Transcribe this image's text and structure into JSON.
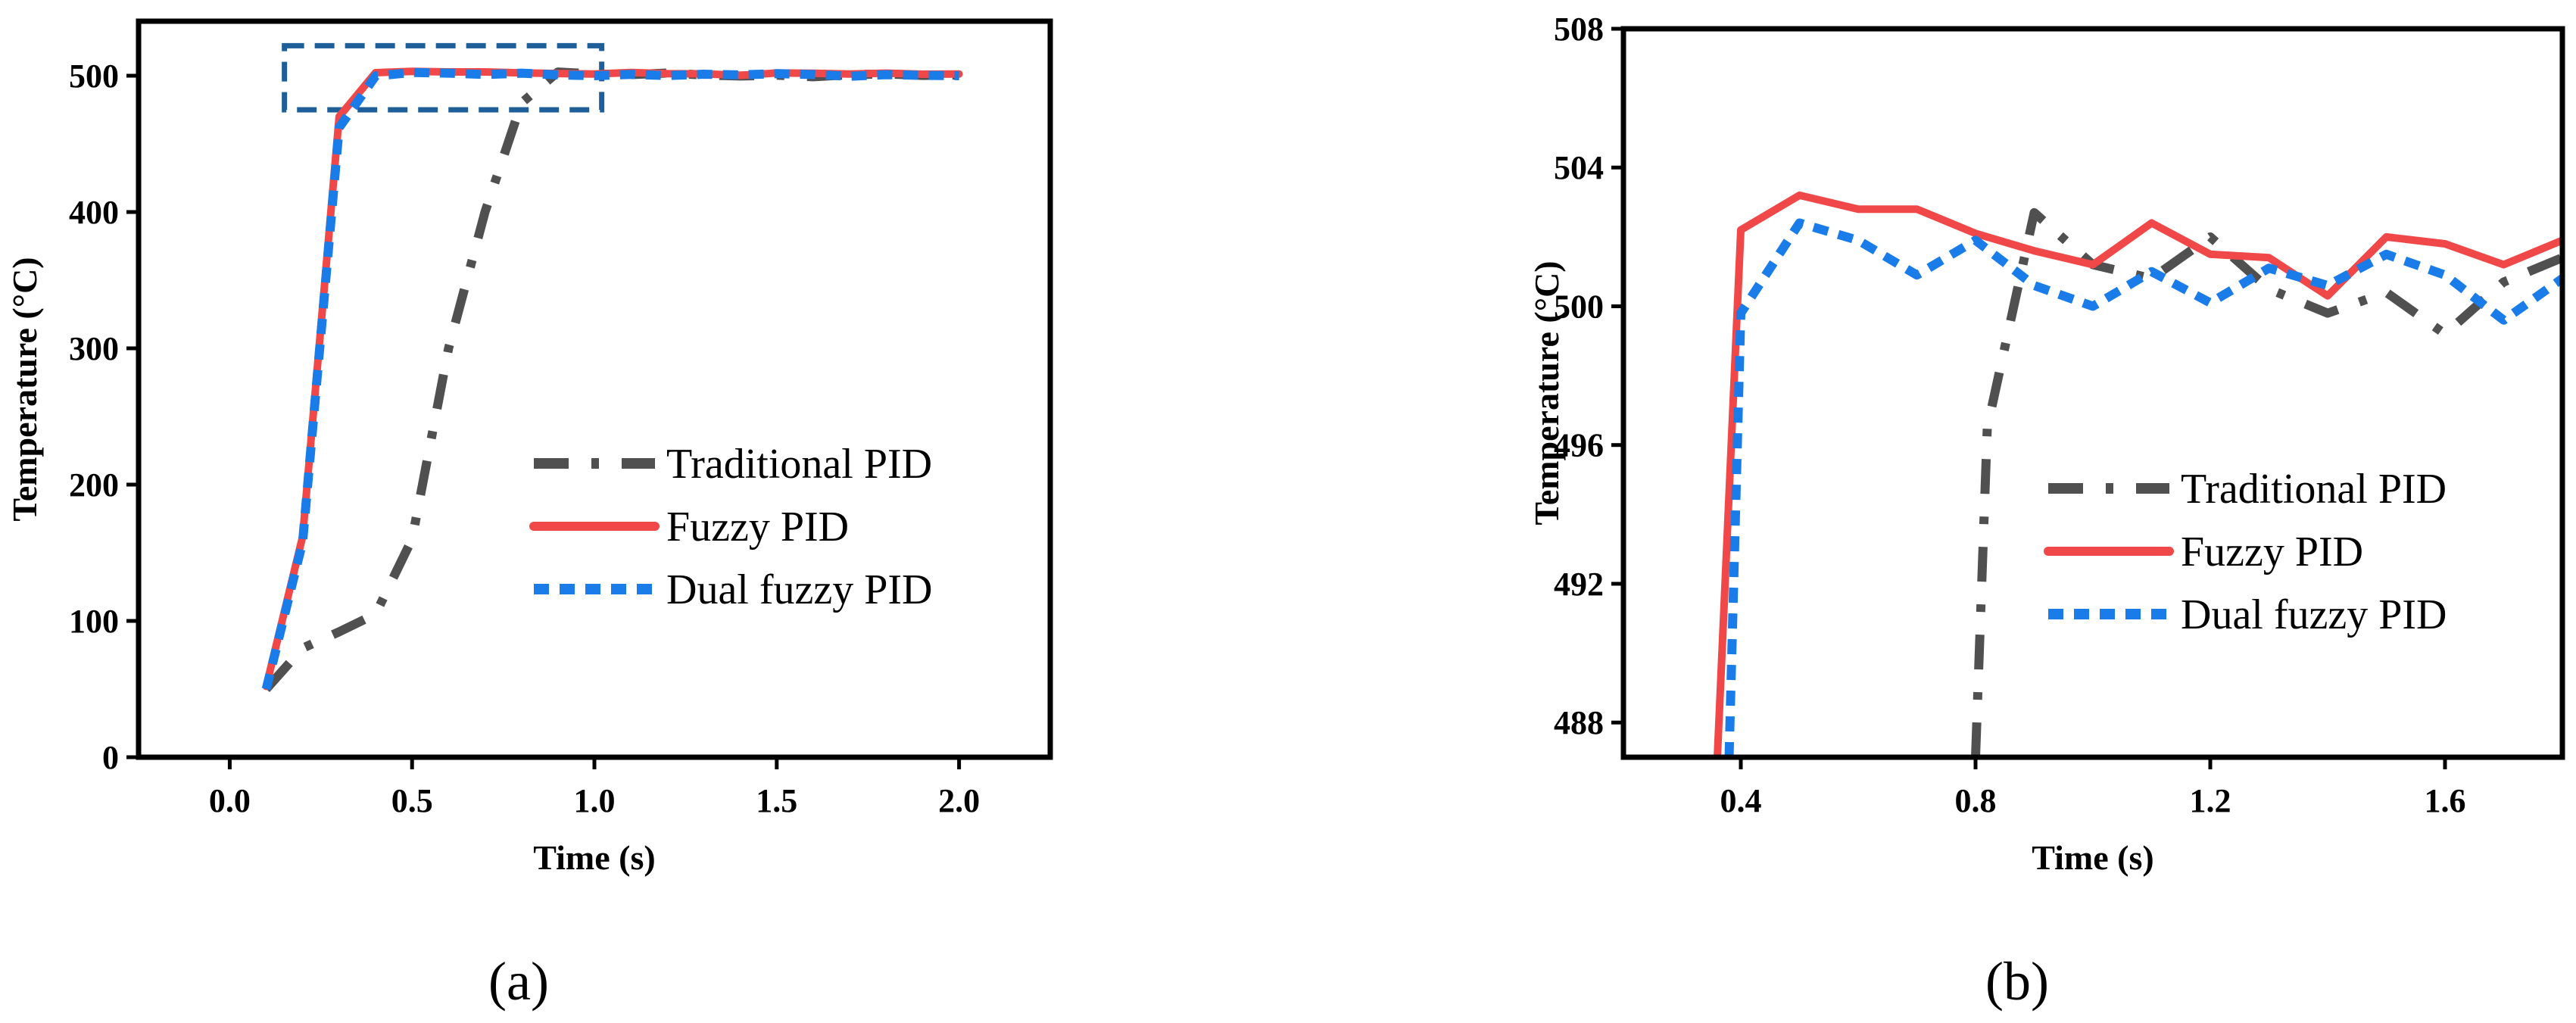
{
  "chart_data": [
    {
      "type": "line",
      "panel_label": "(a)",
      "xlabel": "Time (s)",
      "ylabel": "Temperature (°C)",
      "xlim": [
        -0.25,
        2.25
      ],
      "ylim": [
        0,
        540
      ],
      "xticks": [
        0.0,
        0.5,
        1.0,
        1.5,
        2.0
      ],
      "xtick_labels": [
        "0.0",
        "0.5",
        "1.0",
        "1.5",
        "2.0"
      ],
      "yticks": [
        0,
        100,
        200,
        300,
        400,
        500
      ],
      "ytick_labels": [
        "0",
        "100",
        "200",
        "300",
        "400",
        "500"
      ],
      "legend_position": "center-right",
      "highlight_box": {
        "x": [
          0.15,
          1.02
        ],
        "y": [
          475,
          522
        ]
      },
      "series": [
        {
          "name": "Traditional PID",
          "color": "#505050",
          "style": "dash-dot",
          "x": [
            0.1,
            0.2,
            0.3,
            0.4,
            0.5,
            0.6,
            0.7,
            0.8,
            0.9,
            1.0,
            1.1,
            1.2,
            1.3,
            1.4,
            1.5,
            1.6,
            1.7,
            1.8,
            1.9,
            2.0
          ],
          "y": [
            50,
            80,
            92,
            105,
            160,
            300,
            400,
            480,
            502.7,
            501.2,
            500.8,
            502.0,
            500.5,
            499.8,
            500.4,
            499.2,
            500.7,
            501.4,
            500.2,
            500.5
          ]
        },
        {
          "name": "Fuzzy PID",
          "color": "#f04848",
          "style": "solid",
          "x": [
            0.1,
            0.2,
            0.3,
            0.4,
            0.5,
            0.6,
            0.7,
            0.8,
            0.9,
            1.0,
            1.1,
            1.2,
            1.3,
            1.4,
            1.5,
            1.6,
            1.7,
            1.8,
            1.9,
            2.0
          ],
          "y": [
            52,
            162,
            470,
            502.2,
            503.2,
            502.8,
            502.8,
            502.1,
            501.6,
            501.2,
            502.4,
            501.5,
            501.4,
            500.3,
            502.0,
            501.8,
            501.2,
            501.9,
            501.1,
            501.3
          ]
        },
        {
          "name": "Dual fuzzy PID",
          "color": "#1a7ce8",
          "style": "dotted",
          "x": [
            0.1,
            0.2,
            0.3,
            0.4,
            0.5,
            0.6,
            0.7,
            0.8,
            0.9,
            1.0,
            1.1,
            1.2,
            1.3,
            1.4,
            1.5,
            1.6,
            1.7,
            1.8,
            1.9,
            2.0
          ],
          "y": [
            50,
            158,
            462,
            499.8,
            502.4,
            501.9,
            500.9,
            501.9,
            500.6,
            500.0,
            501.0,
            500.1,
            501.1,
            500.6,
            501.5,
            500.9,
            499.6,
            500.8,
            500.3,
            500.0
          ]
        }
      ]
    },
    {
      "type": "line",
      "panel_label": "(b)",
      "xlabel": "Time (s)",
      "ylabel": "Temperature (°C)",
      "xlim": [
        0.2,
        1.8
      ],
      "ylim": [
        487,
        508
      ],
      "xticks": [
        0.4,
        0.8,
        1.2,
        1.6
      ],
      "xtick_labels": [
        "0.4",
        "0.8",
        "1.2",
        "1.6"
      ],
      "yticks": [
        488,
        492,
        496,
        500,
        504,
        508
      ],
      "ytick_labels": [
        "488",
        "492",
        "496",
        "500",
        "504",
        "508"
      ],
      "legend_position": "lower-right",
      "series": [
        {
          "name": "Traditional PID",
          "color": "#505050",
          "style": "dash-dot",
          "x": [
            0.8,
            0.82,
            0.9,
            1.0,
            1.1,
            1.2,
            1.3,
            1.4,
            1.5,
            1.6,
            1.7,
            1.8
          ],
          "y": [
            487.0,
            496.5,
            502.7,
            501.2,
            500.8,
            502.0,
            500.5,
            499.8,
            500.4,
            499.2,
            500.7,
            501.4
          ]
        },
        {
          "name": "Fuzzy PID",
          "color": "#f04848",
          "style": "solid",
          "x": [
            0.36,
            0.4,
            0.5,
            0.6,
            0.7,
            0.8,
            0.9,
            1.0,
            1.1,
            1.2,
            1.3,
            1.4,
            1.5,
            1.6,
            1.7,
            1.8
          ],
          "y": [
            487.0,
            502.2,
            503.2,
            502.8,
            502.8,
            502.1,
            501.6,
            501.2,
            502.4,
            501.5,
            501.4,
            500.3,
            502.0,
            501.8,
            501.2,
            501.9
          ]
        },
        {
          "name": "Dual fuzzy PID",
          "color": "#1a7ce8",
          "style": "dotted",
          "x": [
            0.38,
            0.4,
            0.5,
            0.6,
            0.7,
            0.8,
            0.9,
            1.0,
            1.1,
            1.2,
            1.3,
            1.4,
            1.5,
            1.6,
            1.7,
            1.8
          ],
          "y": [
            487.0,
            499.8,
            502.4,
            501.9,
            500.9,
            501.9,
            500.6,
            500.0,
            501.0,
            500.1,
            501.1,
            500.6,
            501.5,
            500.9,
            499.6,
            500.8
          ]
        }
      ]
    }
  ]
}
